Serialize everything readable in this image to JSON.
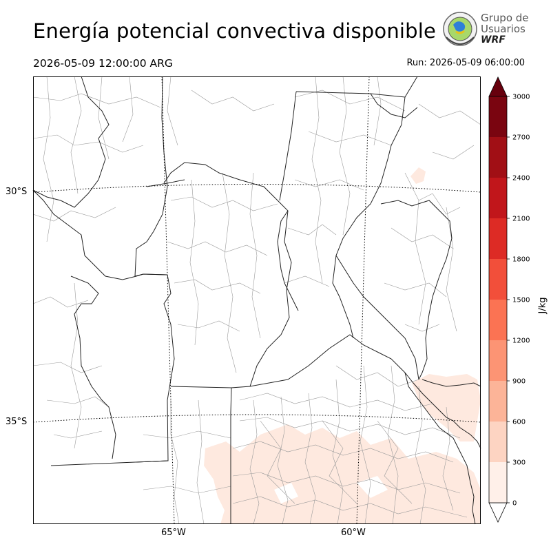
{
  "title": "Energía potencial convectiva disponible",
  "valid_time": "2026-05-09 12:00:00 ARG",
  "run_time": "Run: 2026-05-09 06:00:00",
  "logo": {
    "line1": "Grupo de",
    "line2": "Usuarios",
    "line3": "WRF",
    "icon": "globe-emblem-icon"
  },
  "map": {
    "latitude_labels": [
      "30°S",
      "35°S"
    ],
    "longitude_labels": [
      "65°W",
      "60°W"
    ],
    "gridlines": "dotted",
    "shaded_field": "CAPE"
  },
  "colorbar": {
    "unit": "J/kg",
    "levels": [
      "0",
      "300",
      "600",
      "900",
      "1200",
      "1500",
      "1800",
      "2100",
      "2400",
      "2700",
      "3000"
    ],
    "colors": [
      "#fff0e9",
      "#fdd4c2",
      "#fcb498",
      "#fc9474",
      "#fb7353",
      "#f24f3a",
      "#dd2b25",
      "#c1161b",
      "#a10f15",
      "#7a0510"
    ],
    "extend": "both"
  }
}
